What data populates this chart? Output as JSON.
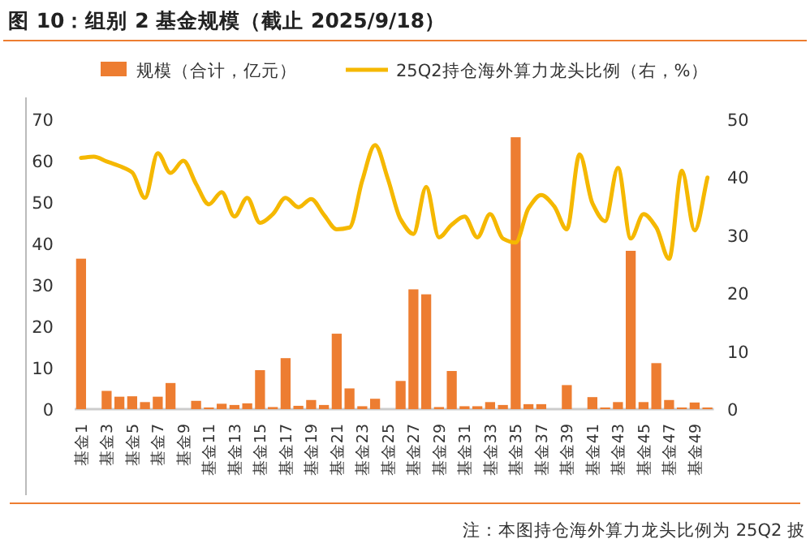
{
  "chart_data": {
    "type": "bar",
    "title": "图 10：组别 2 基金规模（截止 2025/9/18）",
    "categories": [
      "基金1",
      null,
      "基金3",
      null,
      "基金5",
      null,
      "基金7",
      null,
      "基金9",
      null,
      "基金11",
      null,
      "基金13",
      null,
      "基金15",
      null,
      "基金17",
      null,
      "基金19",
      null,
      "基金21",
      null,
      "基金23",
      null,
      "基金25",
      null,
      "基金27",
      null,
      "基金29",
      null,
      "基金31",
      null,
      "基金33",
      null,
      "基金35",
      null,
      "基金37",
      null,
      "基金39",
      null,
      "基金41",
      null,
      "基金43",
      null,
      "基金45",
      null,
      "基金47",
      null,
      "基金49",
      null
    ],
    "series": [
      {
        "name": "规模（合计，亿元）",
        "color": "#ed7d31",
        "values": [
          36.3,
          0,
          4.4,
          3.0,
          3.1,
          1.7,
          3.0,
          6.3,
          0,
          2.0,
          0.4,
          1.3,
          1.0,
          1.4,
          9.4,
          0.5,
          12.3,
          0.8,
          2.2,
          1.0,
          18.2,
          5.0,
          0.7,
          2.5,
          0,
          6.8,
          28.9,
          27.7,
          0.5,
          9.2,
          0.7,
          0.7,
          1.7,
          1.0,
          65.6,
          1.2,
          1.2,
          0,
          5.8,
          0,
          2.9,
          0.4,
          1.7,
          38.2,
          1.7,
          11.1,
          2.2,
          0.4,
          1.6,
          0.4
        ]
      },
      {
        "name": "25Q2持仓海外算力龙头比例（右，%）",
        "type": "line",
        "axis": "y2",
        "color": "#f5b800",
        "values": [
          43.3,
          43.5,
          42.7,
          41.9,
          40.8,
          36.4,
          44.1,
          40.7,
          42.8,
          38.8,
          35.3,
          37.4,
          33.2,
          36.4,
          32.1,
          33.6,
          36.4,
          34.8,
          36.2,
          33.5,
          31.0,
          31.3,
          39.4,
          45.5,
          39.7,
          32.7,
          30.2,
          38.3,
          29.6,
          31.8,
          33.2,
          29.6,
          33.6,
          29.4,
          28.7,
          34.6,
          36.9,
          35.0,
          31.0,
          43.9,
          35.5,
          32.4,
          41.6,
          29.4,
          33.6,
          31.3,
          25.9,
          41.1,
          30.8,
          39.9
        ]
      }
    ],
    "ylim": [
      0,
      70
    ],
    "yticks": [
      0,
      10,
      20,
      30,
      40,
      50,
      60,
      70
    ],
    "y2lim": [
      0,
      50
    ],
    "y2ticks": [
      0,
      10,
      20,
      30,
      40,
      50
    ],
    "legend": "top",
    "annotations": [
      "注：本图持仓海外算力龙头比例为 25Q2 披"
    ]
  }
}
